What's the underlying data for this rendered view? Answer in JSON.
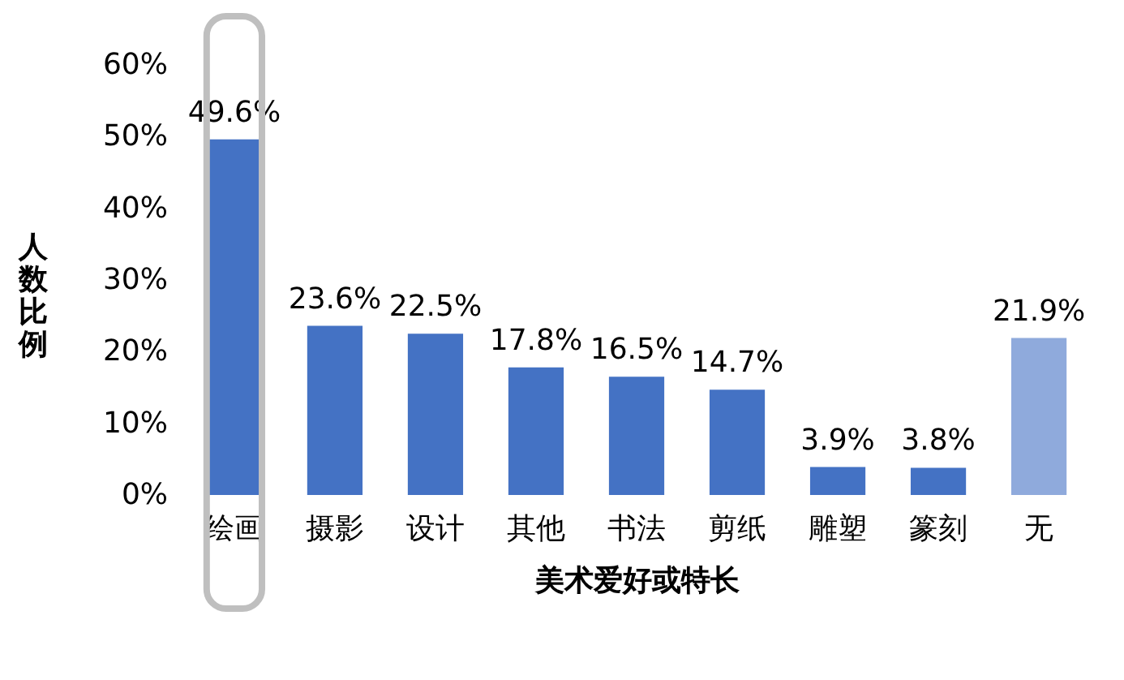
{
  "chart_data": {
    "type": "bar",
    "xlabel": "美术爱好或特长",
    "ylabel": "人数比例",
    "categories": [
      "绘画",
      "摄影",
      "设计",
      "其他",
      "书法",
      "剪纸",
      "雕塑",
      "篆刻",
      "无"
    ],
    "values": [
      49.6,
      23.6,
      22.5,
      17.8,
      16.5,
      14.7,
      3.9,
      3.8,
      21.9
    ],
    "colors": [
      "#4472c4",
      "#4472c4",
      "#4472c4",
      "#4472c4",
      "#4472c4",
      "#4472c4",
      "#4472c4",
      "#4472c4",
      "#8faadc"
    ],
    "value_labels": [
      "49.6%",
      "23.6%",
      "22.5%",
      "17.8%",
      "16.5%",
      "14.7%",
      "3.9%",
      "3.8%",
      "21.9%"
    ],
    "ylim": [
      0,
      60
    ],
    "yticks": [
      {
        "value": 0,
        "label": "0%"
      },
      {
        "value": 10,
        "label": "10%"
      },
      {
        "value": 20,
        "label": "20%"
      },
      {
        "value": 30,
        "label": "30%"
      },
      {
        "value": 40,
        "label": "40%"
      },
      {
        "value": 50,
        "label": "50%"
      },
      {
        "value": 60,
        "label": "60%"
      }
    ],
    "grid": false
  }
}
